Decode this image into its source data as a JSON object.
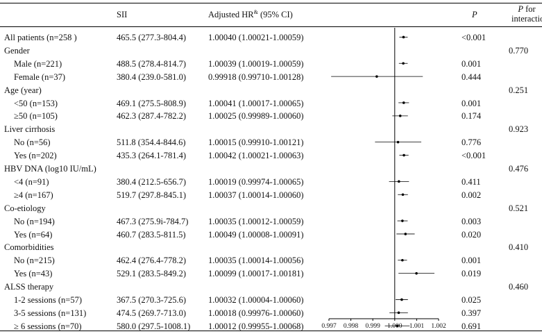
{
  "headers": {
    "sii": "SII",
    "hr_main": "Adjusted HR",
    "hr_sup": "&",
    "hr_ci": " (95% CI)",
    "p": "P",
    "pint_p": "P",
    "pint_rest": " for",
    "pint_line2": "interaction"
  },
  "rows": [
    {
      "label": "All patients (n=258 )",
      "indent": false,
      "sii": "465.5 (277.3-804.4)",
      "hr": "1.00040 (1.00021-1.00059)",
      "p": "<0.001",
      "pint": ""
    },
    {
      "label": "Gender",
      "indent": false,
      "sii": "",
      "hr": "",
      "p": "",
      "pint": "0.770"
    },
    {
      "label": "Male (n=221)",
      "indent": true,
      "sii": "488.5 (278.4-814.7)",
      "hr": "1.00039 (1.00019-1.00059)",
      "p": "0.001",
      "pint": ""
    },
    {
      "label": "Female (n=37)",
      "indent": true,
      "sii": "380.4 (239.0-581.0)",
      "hr": "0.99918 (0.99710-1.00128)",
      "p": "0.444",
      "pint": ""
    },
    {
      "label": "Age (year)",
      "indent": false,
      "sii": "",
      "hr": "",
      "p": "",
      "pint": "0.251"
    },
    {
      "label": "<50 (n=153)",
      "indent": true,
      "sii": "469.1 (275.5-808.9)",
      "hr": "1.00041 (1.00017-1.00065)",
      "p": "0.001",
      "pint": ""
    },
    {
      "label": "≥50 (n=105)",
      "indent": true,
      "sii": "462.3 (287.4-782.2)",
      "hr": "1.00025 (0.99989-1.00060)",
      "p": "0.174",
      "pint": ""
    },
    {
      "label": "Liver cirrhosis",
      "indent": false,
      "sii": "",
      "hr": "",
      "p": "",
      "pint": "0.923"
    },
    {
      "label": "No (n=56)",
      "indent": true,
      "sii": "511.8 (354.4-844.6)",
      "hr": "1.00015 (0.99910-1.00121)",
      "p": "0.776",
      "pint": ""
    },
    {
      "label": "Yes (n=202)",
      "indent": true,
      "sii": "435.3 (264.1-781.4)",
      "hr": "1.00042 (1.00021-1.00063)",
      "p": "<0.001",
      "pint": ""
    },
    {
      "label": "HBV DNA (log10 IU/mL)",
      "indent": false,
      "sii": "",
      "hr": "",
      "p": "",
      "pint": "0.476"
    },
    {
      "label": "<4 (n=91)",
      "indent": true,
      "sii": "380.4 (212.5-656.7)",
      "hr": "1.00019 (0.99974-1.00065)",
      "p": "0.411",
      "pint": ""
    },
    {
      "label": "≥4 (n=167)",
      "indent": true,
      "sii": "519.7 (297.8-845.1)",
      "hr": "1.00037 (1.00014-1.00060)",
      "p": "0.002",
      "pint": ""
    },
    {
      "label": "Co-etiology",
      "indent": false,
      "sii": "",
      "hr": "",
      "p": "",
      "pint": "0.521"
    },
    {
      "label": "No (n=194)",
      "indent": true,
      "sii": "467.3 (275.9i-784.7)",
      "hr": "1.00035 (1.00012-1.00059)",
      "p": "0.003",
      "pint": ""
    },
    {
      "label": "Yes (n=64)",
      "indent": true,
      "sii": "460.7 (283.5-811.5)",
      "hr": "1.00049 (1.00008-1.00091)",
      "p": "0.020",
      "pint": ""
    },
    {
      "label": "Comorbidities",
      "indent": false,
      "sii": "",
      "hr": "",
      "p": "",
      "pint": "0.410"
    },
    {
      "label": "No (n=215)",
      "indent": true,
      "sii": "462.4 (276.4-778.2)",
      "hr": "1.00035 (1.00014-1.00056)",
      "p": "0.001",
      "pint": ""
    },
    {
      "label": "Yes (n=43)",
      "indent": true,
      "sii": "529.1 (283.5-849.2)",
      "hr": "1.00099 (1.00017-1.00181)",
      "p": "0.019",
      "pint": ""
    },
    {
      "label": "ALSS therapy",
      "indent": false,
      "sii": "",
      "hr": "",
      "p": "",
      "pint": "0.460"
    },
    {
      "label": "1-2 sessions (n=57)",
      "indent": true,
      "sii": "367.5 (270.3-725.6)",
      "hr": "1.00032 (1.00004-1.00060)",
      "p": "0.025",
      "pint": ""
    },
    {
      "label": "3-5 sessions (n=131)",
      "indent": true,
      "sii": "474.5 (269.7-713.0)",
      "hr": "1.00018 (0.99976-1.00060)",
      "p": "0.397",
      "pint": ""
    },
    {
      "label": "≥ 6 sessions (n=70)",
      "indent": true,
      "sii": "580.0 (297.5-1008.1)",
      "hr": "1.00012 (0.99955-1.00068)",
      "p": "0.691",
      "pint": ""
    }
  ],
  "chart_data": {
    "type": "scatter",
    "subtype": "forest",
    "reference_line": 1.0,
    "xlim": [
      0.997,
      1.002
    ],
    "x_ticks": [
      "0.997",
      "0.998",
      "0.999",
      "1.000",
      "1.001",
      "1.002"
    ],
    "tick_values": [
      0.997,
      0.998,
      0.999,
      1.0,
      1.001,
      1.002
    ],
    "series": [
      {
        "points": [
          {
            "row": 0,
            "hr": 1.0004,
            "lo": 1.00021,
            "hi": 1.00059
          },
          {
            "row": 2,
            "hr": 1.00039,
            "lo": 1.00019,
            "hi": 1.00059
          },
          {
            "row": 3,
            "hr": 0.99918,
            "lo": 0.9971,
            "hi": 1.00128
          },
          {
            "row": 5,
            "hr": 1.00041,
            "lo": 1.00017,
            "hi": 1.00065
          },
          {
            "row": 6,
            "hr": 1.00025,
            "lo": 0.99989,
            "hi": 1.0006
          },
          {
            "row": 8,
            "hr": 1.00015,
            "lo": 0.9991,
            "hi": 1.00121
          },
          {
            "row": 9,
            "hr": 1.00042,
            "lo": 1.00021,
            "hi": 1.00063
          },
          {
            "row": 11,
            "hr": 1.00019,
            "lo": 0.99974,
            "hi": 1.00065
          },
          {
            "row": 12,
            "hr": 1.00037,
            "lo": 1.00014,
            "hi": 1.0006
          },
          {
            "row": 14,
            "hr": 1.00035,
            "lo": 1.00012,
            "hi": 1.00059
          },
          {
            "row": 15,
            "hr": 1.00049,
            "lo": 1.00008,
            "hi": 1.00091
          },
          {
            "row": 17,
            "hr": 1.00035,
            "lo": 1.00014,
            "hi": 1.00056
          },
          {
            "row": 18,
            "hr": 1.00099,
            "lo": 1.00017,
            "hi": 1.00181
          },
          {
            "row": 20,
            "hr": 1.00032,
            "lo": 1.00004,
            "hi": 1.0006
          },
          {
            "row": 21,
            "hr": 1.00018,
            "lo": 0.99976,
            "hi": 1.0006
          },
          {
            "row": 22,
            "hr": 1.00012,
            "lo": 0.99955,
            "hi": 1.00068
          }
        ]
      }
    ]
  }
}
